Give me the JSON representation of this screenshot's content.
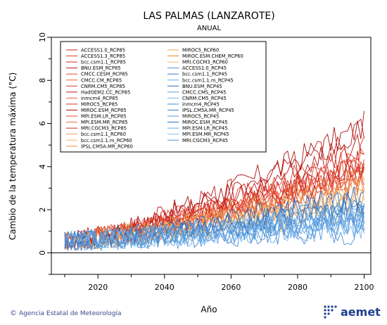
{
  "chart_data": {
    "type": "line",
    "title": "LAS PALMAS (LANZAROTE)",
    "subtitle": "ANUAL",
    "xlabel": "Año",
    "ylabel": "Cambio de la temperatura máxima (°C)",
    "xlim": [
      2006,
      2102
    ],
    "ylim": [
      -1,
      10
    ],
    "xticks": [
      "2020",
      "2040",
      "2060",
      "2080",
      "2100"
    ],
    "xtick_values": [
      2020,
      2040,
      2060,
      2080,
      2100
    ],
    "yticks": [
      "0",
      "2",
      "4",
      "6",
      "8",
      "10"
    ],
    "ytick_values": [
      0,
      2,
      4,
      6,
      8,
      10
    ],
    "zero_line": 0,
    "grid": false,
    "legend_position": "top-left",
    "year_start": 2010,
    "year_end": 2100,
    "series": [
      {
        "name": "ACCESS1.0_RCP85",
        "color": "#c82020",
        "end": 4.2
      },
      {
        "name": "ACCESS1.3_RCP85",
        "color": "#e03a2a",
        "end": 4.8
      },
      {
        "name": "bcc.csm1.1_RCP85",
        "color": "#d62c1e",
        "end": 3.9
      },
      {
        "name": "BNU.ESM_RCP85",
        "color": "#b81616",
        "end": 5.2
      },
      {
        "name": "CMCC.CESM_RCP85",
        "color": "#e84830",
        "end": 4.4
      },
      {
        "name": "CMCC.CM_RCP85",
        "color": "#f05a3a",
        "end": 3.6
      },
      {
        "name": "CNRM.CM5_RCP85",
        "color": "#d83828",
        "end": 4.0
      },
      {
        "name": "HadGEM2.CC_RCP85",
        "color": "#c01a1a",
        "end": 5.6
      },
      {
        "name": "inmcm4_RCP85",
        "color": "#e86040",
        "end": 3.3
      },
      {
        "name": "MIROC5_RCP85",
        "color": "#d0301e",
        "end": 4.1
      },
      {
        "name": "MIROC.ESM_RCP85",
        "color": "#a81010",
        "end": 5.9
      },
      {
        "name": "MPI.ESM.LR_RCP85",
        "color": "#e04428",
        "end": 3.8
      },
      {
        "name": "MPI.ESM.MR_RCP85",
        "color": "#f06848",
        "end": 3.5
      },
      {
        "name": "MRI.CGCM3_RCP85",
        "color": "#cc2a20",
        "end": 3.9
      },
      {
        "name": "bcc.csm1.1_RCP60",
        "color": "#f0a050",
        "end": 2.8
      },
      {
        "name": "bcc.csm1.1.m_RCP60",
        "color": "#f4b060",
        "end": 2.6
      },
      {
        "name": "IPSL.CM5A.MR_RCP60",
        "color": "#e89040",
        "end": 3.1
      },
      {
        "name": "MIROC5_RCP60",
        "color": "#f0a858",
        "end": 2.4
      },
      {
        "name": "MIROC.ESM.CHEM_RCP60",
        "color": "#e08838",
        "end": 3.4
      },
      {
        "name": "MRI.CGCM3_RCP60",
        "color": "#f4b868",
        "end": 2.2
      },
      {
        "name": "ACCESS1.0_RCP45",
        "color": "#4a90d8",
        "end": 2.0
      },
      {
        "name": "bcc.csm1.1_RCP45",
        "color": "#3a7ac8",
        "end": 1.8
      },
      {
        "name": "bcc.csm1.1.m_RCP45",
        "color": "#6aaee8",
        "end": 1.5
      },
      {
        "name": "BNU.ESM_RCP45",
        "color": "#2a6ab8",
        "end": 2.4
      },
      {
        "name": "CMCC.CMS_RCP45",
        "color": "#5aa0e0",
        "end": 1.7
      },
      {
        "name": "CNRM.CM5_RCP45",
        "color": "#7ab8ec",
        "end": 1.9
      },
      {
        "name": "inmcm4_RCP45",
        "color": "#4888d0",
        "end": 1.2
      },
      {
        "name": "IPSL.CM5A.MR_RCP45",
        "color": "#3880cc",
        "end": 2.2
      },
      {
        "name": "MIROC5_RCP45",
        "color": "#5898dc",
        "end": 1.6
      },
      {
        "name": "MIROC.ESM_RCP45",
        "color": "#2c70bc",
        "end": 2.6
      },
      {
        "name": "MPI.ESM.LR_RCP45",
        "color": "#68a8e4",
        "end": 1.4
      },
      {
        "name": "MPI.ESM.MR_RCP45",
        "color": "#80bcee",
        "end": 1.3
      },
      {
        "name": "MRI.CGCM3_RCP45",
        "color": "#4a94dc",
        "end": 1.1
      }
    ]
  },
  "footer": {
    "credit": "Agencia Estatal de Meteorología",
    "copyright_symbol": "©",
    "logo_text": "aemet"
  }
}
